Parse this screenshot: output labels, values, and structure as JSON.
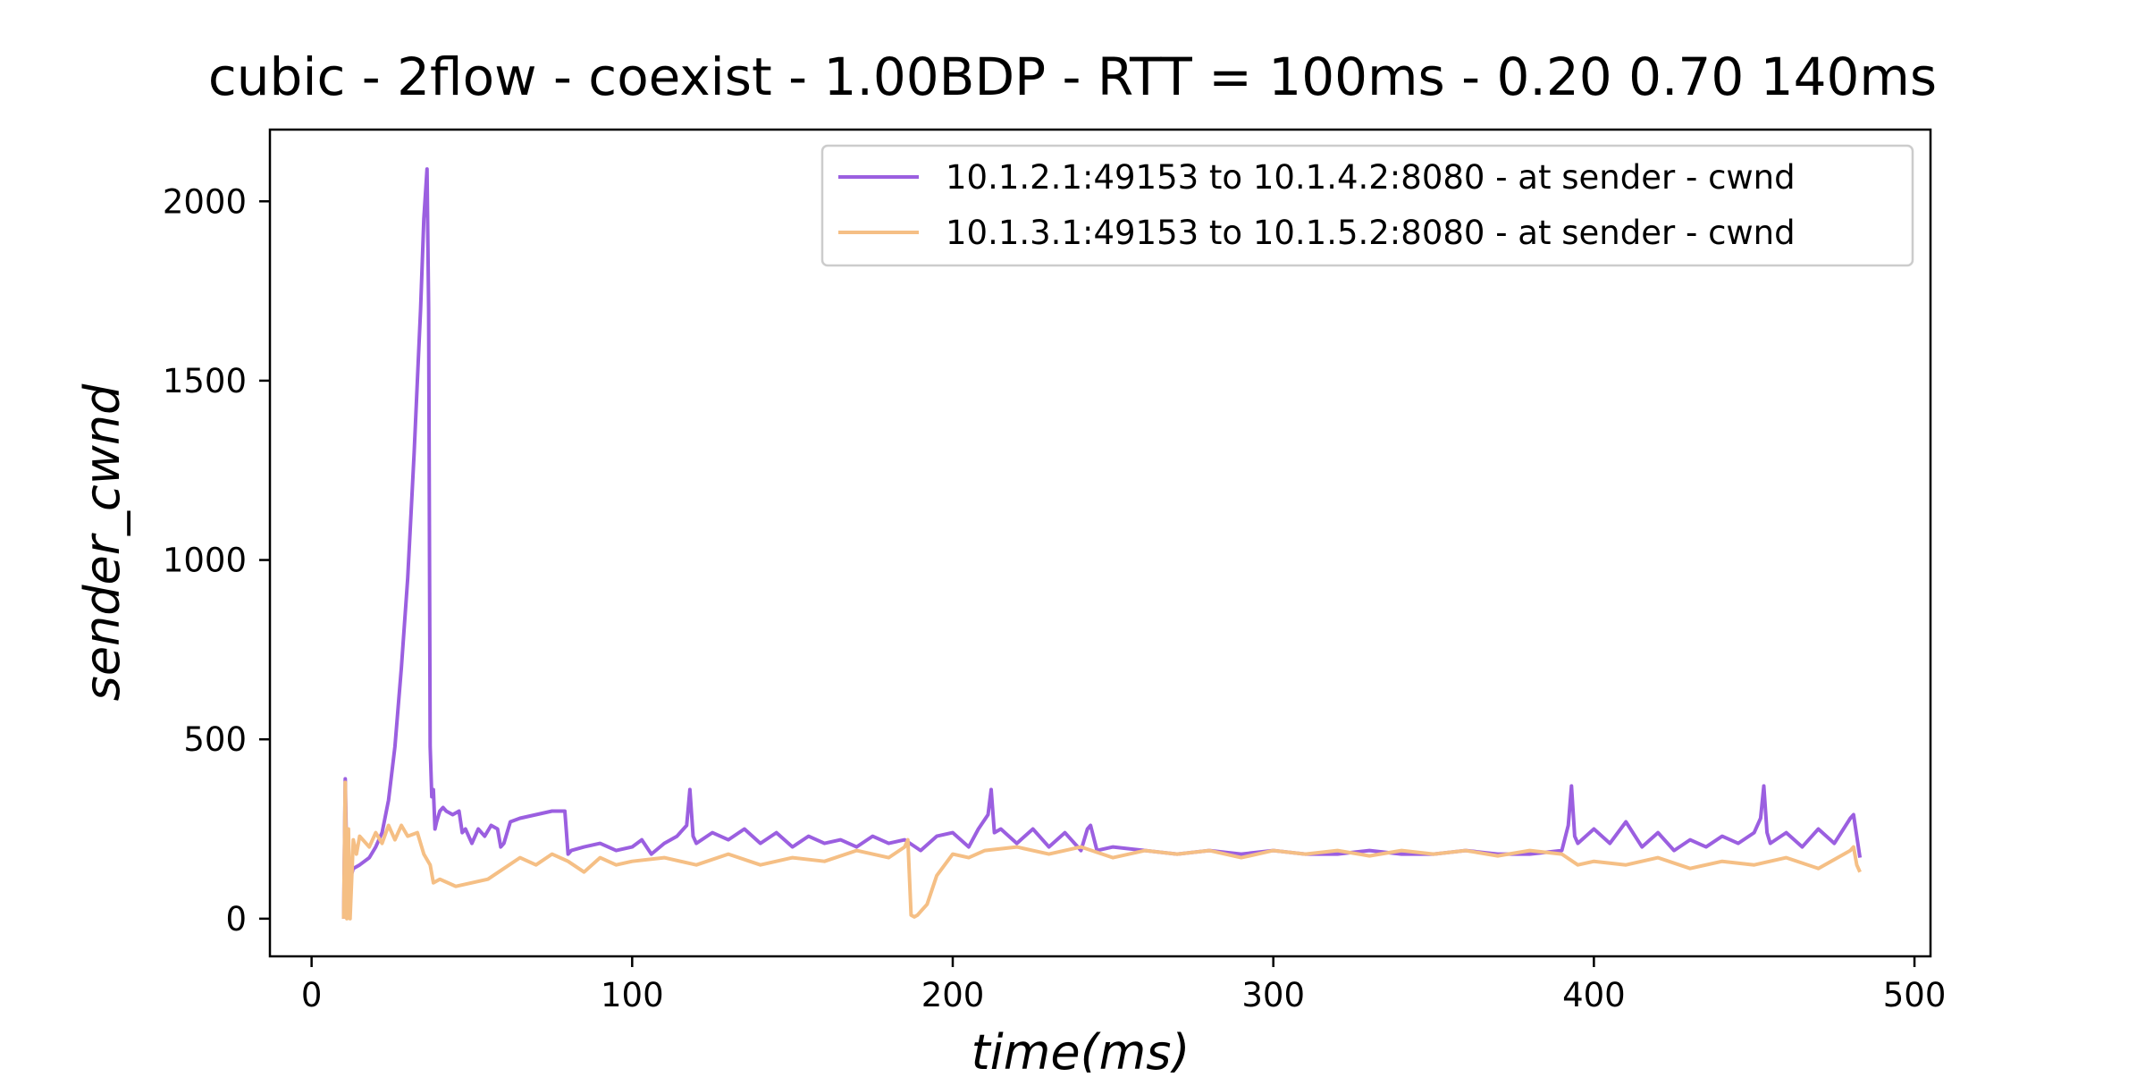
{
  "chart_data": {
    "type": "line",
    "title": "cubic - 2flow - coexist - 1.00BDP - RTT = 100ms - 0.20 0.70 140ms",
    "xlabel": "time(ms)",
    "ylabel": "sender_cwnd",
    "xlim": [
      -13,
      505
    ],
    "ylim": [
      -105,
      2200
    ],
    "xticks": [
      0,
      100,
      200,
      300,
      400,
      500
    ],
    "yticks": [
      0,
      500,
      1000,
      1500,
      2000
    ],
    "grid": false,
    "legend_position": "top-right",
    "series": [
      {
        "name": "10.1.2.1:49153 to 10.1.4.2:8080 - at sender - cwnd",
        "color": "#9b5fe0",
        "x": [
          10,
          10.5,
          11,
          12,
          13,
          15,
          18,
          20,
          22,
          24,
          26,
          28,
          30,
          32,
          34,
          35,
          36,
          36.5,
          37,
          37.5,
          38,
          38.5,
          39,
          40,
          41,
          42,
          44,
          46,
          47,
          48,
          50,
          52,
          54,
          56,
          58,
          59,
          60,
          62,
          65,
          70,
          75,
          79,
          80,
          81,
          85,
          90,
          95,
          100,
          103,
          106,
          110,
          114,
          117,
          118,
          119,
          120,
          125,
          130,
          135,
          140,
          145,
          150,
          155,
          160,
          165,
          170,
          175,
          180,
          185,
          190,
          195,
          200,
          205,
          208,
          211,
          212,
          213,
          215,
          220,
          225,
          230,
          235,
          240,
          242,
          243,
          245,
          250,
          260,
          270,
          280,
          290,
          300,
          310,
          320,
          330,
          340,
          350,
          360,
          370,
          380,
          390,
          392,
          393,
          394,
          395,
          400,
          405,
          410,
          415,
          420,
          425,
          430,
          435,
          440,
          445,
          450,
          452,
          453,
          454,
          455,
          460,
          465,
          470,
          475,
          480,
          481,
          482,
          483
        ],
        "y": [
          0,
          390,
          130,
          110,
          140,
          150,
          170,
          200,
          240,
          330,
          480,
          700,
          950,
          1300,
          1700,
          1950,
          2090,
          1700,
          480,
          340,
          360,
          250,
          270,
          300,
          310,
          300,
          290,
          300,
          240,
          250,
          210,
          250,
          230,
          260,
          250,
          200,
          210,
          270,
          280,
          290,
          300,
          300,
          180,
          190,
          200,
          210,
          190,
          200,
          220,
          180,
          210,
          230,
          260,
          360,
          230,
          210,
          240,
          220,
          250,
          210,
          240,
          200,
          230,
          210,
          220,
          200,
          230,
          210,
          220,
          190,
          230,
          240,
          200,
          250,
          290,
          360,
          240,
          250,
          210,
          250,
          200,
          240,
          190,
          250,
          260,
          190,
          200,
          190,
          180,
          190,
          180,
          190,
          180,
          180,
          190,
          180,
          180,
          190,
          180,
          180,
          190,
          260,
          370,
          230,
          210,
          250,
          210,
          270,
          200,
          240,
          190,
          220,
          200,
          230,
          210,
          240,
          280,
          370,
          240,
          210,
          240,
          200,
          250,
          210,
          280,
          290,
          230,
          170
        ]
      },
      {
        "name": "10.1.3.1:49153 to 10.1.5.2:8080 - at sender - cwnd",
        "color": "#f5bf85",
        "x": [
          10,
          10.5,
          11,
          11.5,
          12,
          13,
          14,
          15,
          18,
          20,
          22,
          24,
          26,
          28,
          30,
          33,
          35,
          37,
          38,
          40,
          45,
          50,
          55,
          60,
          65,
          70,
          75,
          80,
          85,
          90,
          95,
          100,
          110,
          120,
          130,
          140,
          150,
          160,
          170,
          180,
          185,
          186,
          187,
          188,
          189,
          190,
          192,
          195,
          200,
          205,
          210,
          220,
          230,
          240,
          250,
          260,
          270,
          280,
          290,
          300,
          310,
          320,
          330,
          340,
          350,
          360,
          370,
          380,
          390,
          395,
          400,
          410,
          420,
          430,
          440,
          450,
          460,
          470,
          480,
          481,
          482,
          483
        ],
        "y": [
          0,
          380,
          0,
          250,
          0,
          220,
          180,
          230,
          200,
          240,
          210,
          260,
          220,
          260,
          230,
          240,
          180,
          150,
          100,
          110,
          90,
          100,
          110,
          140,
          170,
          150,
          180,
          160,
          130,
          170,
          150,
          160,
          170,
          150,
          180,
          150,
          170,
          160,
          190,
          170,
          200,
          220,
          10,
          5,
          10,
          20,
          40,
          120,
          180,
          170,
          190,
          200,
          180,
          200,
          170,
          190,
          180,
          190,
          170,
          190,
          180,
          190,
          175,
          190,
          180,
          190,
          175,
          190,
          180,
          150,
          160,
          150,
          170,
          140,
          160,
          150,
          170,
          140,
          190,
          200,
          150,
          130
        ]
      }
    ]
  }
}
